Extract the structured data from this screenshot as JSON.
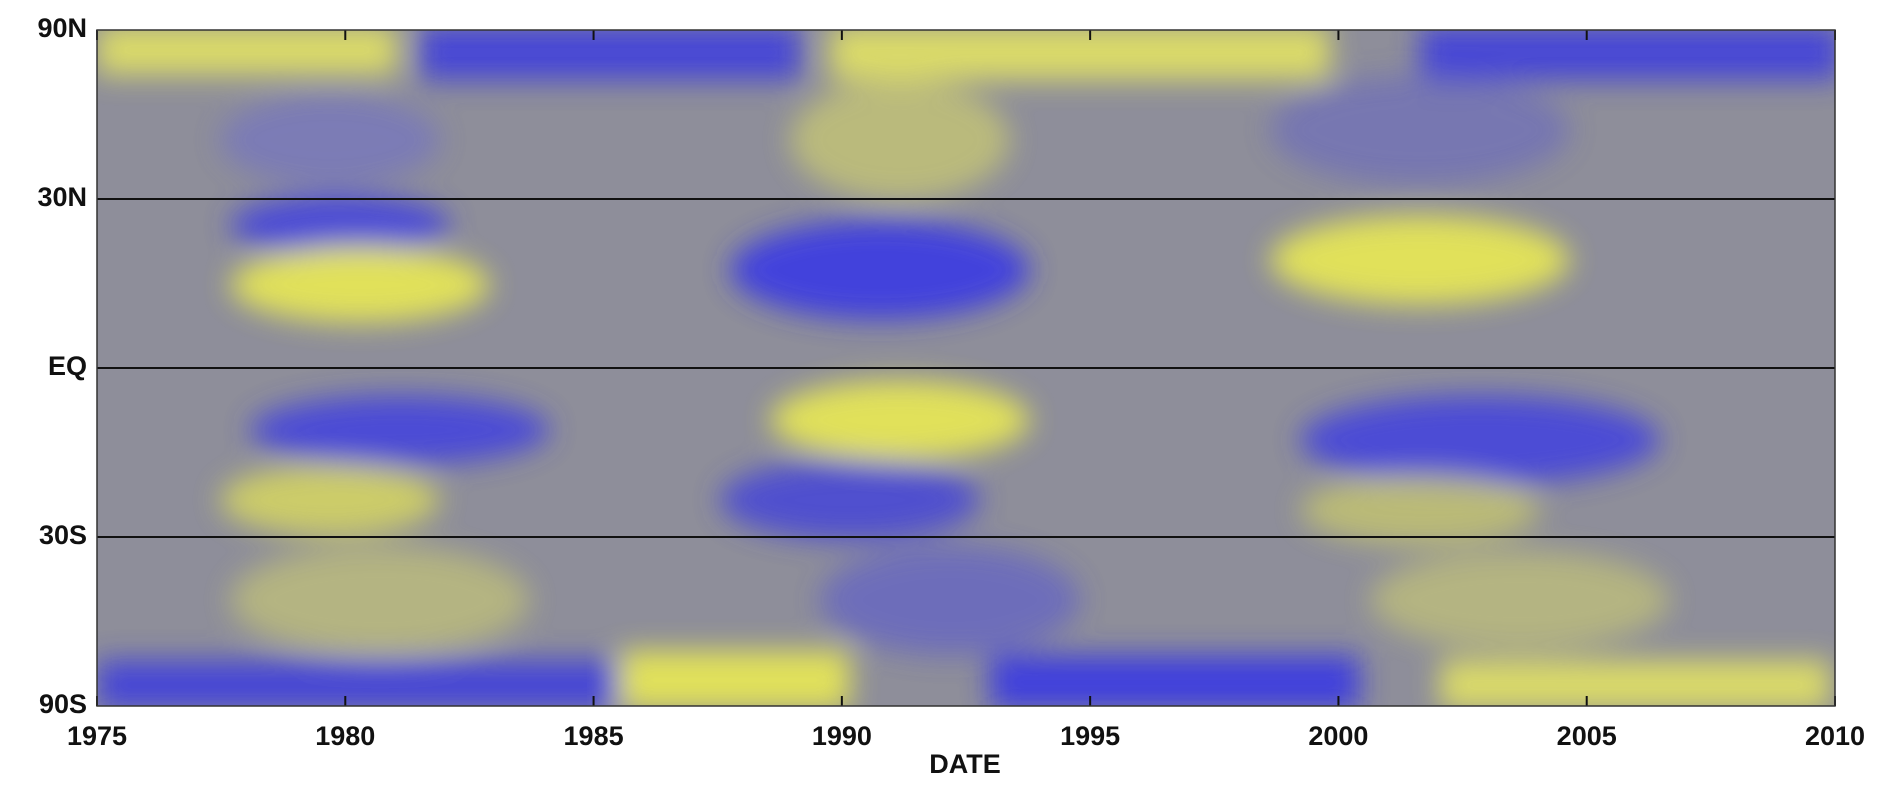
{
  "chart_data": {
    "type": "heatmap",
    "x_label": "DATE",
    "xlim": [
      1975,
      2010
    ],
    "xticks": [
      1975,
      1980,
      1985,
      1990,
      1995,
      2000,
      2005,
      2010
    ],
    "ylim": [
      -90,
      90
    ],
    "yscale": "sine",
    "yticks": [
      {
        "value": -90,
        "label": "90S"
      },
      {
        "value": -30,
        "label": "30S"
      },
      {
        "value": 0,
        "label": "EQ"
      },
      {
        "value": 30,
        "label": "30N"
      },
      {
        "value": 90,
        "label": "90N"
      }
    ],
    "grid": true
  }
}
